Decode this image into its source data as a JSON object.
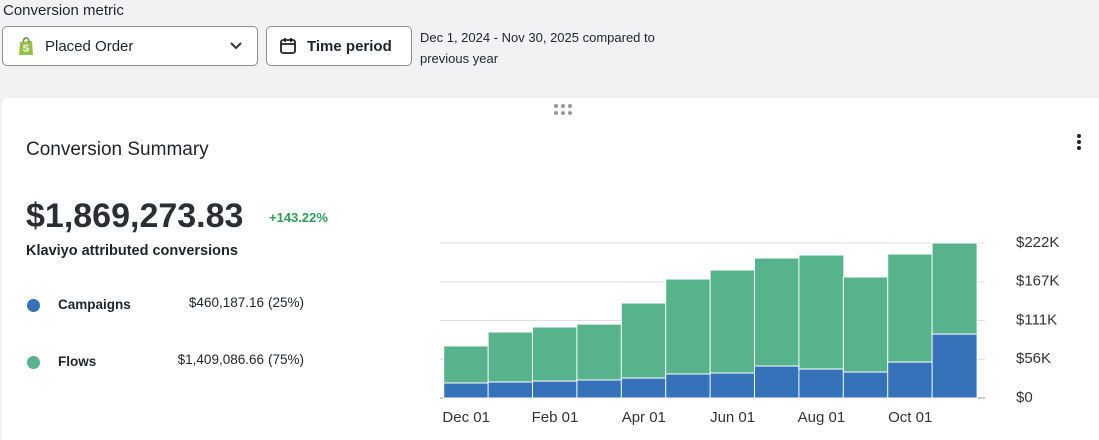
{
  "header": {
    "metric_label": "Conversion metric",
    "metric_value": "Placed Order",
    "time_button": "Time period",
    "date_range": "Dec 1, 2024 - Nov 30, 2025 compared to previous year"
  },
  "summary": {
    "title": "Conversion Summary",
    "total": "$1,869,273.83",
    "change": "+143.22%",
    "subtitle": "Klaviyo attributed conversions",
    "breakdown": [
      {
        "amount": "$460,187.16",
        "share": "(25%)"
      },
      {
        "amount": "$1,409,086.66",
        "share": "(75%)"
      }
    ]
  },
  "chart_data": {
    "type": "stacked-bar",
    "categories": [
      "Dec 01",
      null,
      "Feb 01",
      null,
      "Apr 01",
      null,
      "Jun 01",
      null,
      "Aug 01",
      null,
      "Oct 01",
      null
    ],
    "series": [
      {
        "name": "Campaigns",
        "color": "#3572b9",
        "values": [
          21500,
          23000,
          24300,
          25800,
          28600,
          34400,
          35800,
          45800,
          41500,
          37200,
          51500,
          91600
        ]
      },
      {
        "name": "Flows",
        "color": "#56b38b",
        "values": [
          53000,
          71500,
          77400,
          80000,
          107400,
          136000,
          147500,
          154700,
          163300,
          136100,
          154700,
          130400
        ]
      }
    ],
    "ylim": [
      0,
      222000
    ],
    "yticks": [
      {
        "value": 0,
        "label": "$0"
      },
      {
        "value": 55500,
        "label": "$56K"
      },
      {
        "value": 111000,
        "label": "$111K"
      },
      {
        "value": 166500,
        "label": "$167K"
      },
      {
        "value": 222000,
        "label": "$222K"
      }
    ],
    "grid": true
  }
}
